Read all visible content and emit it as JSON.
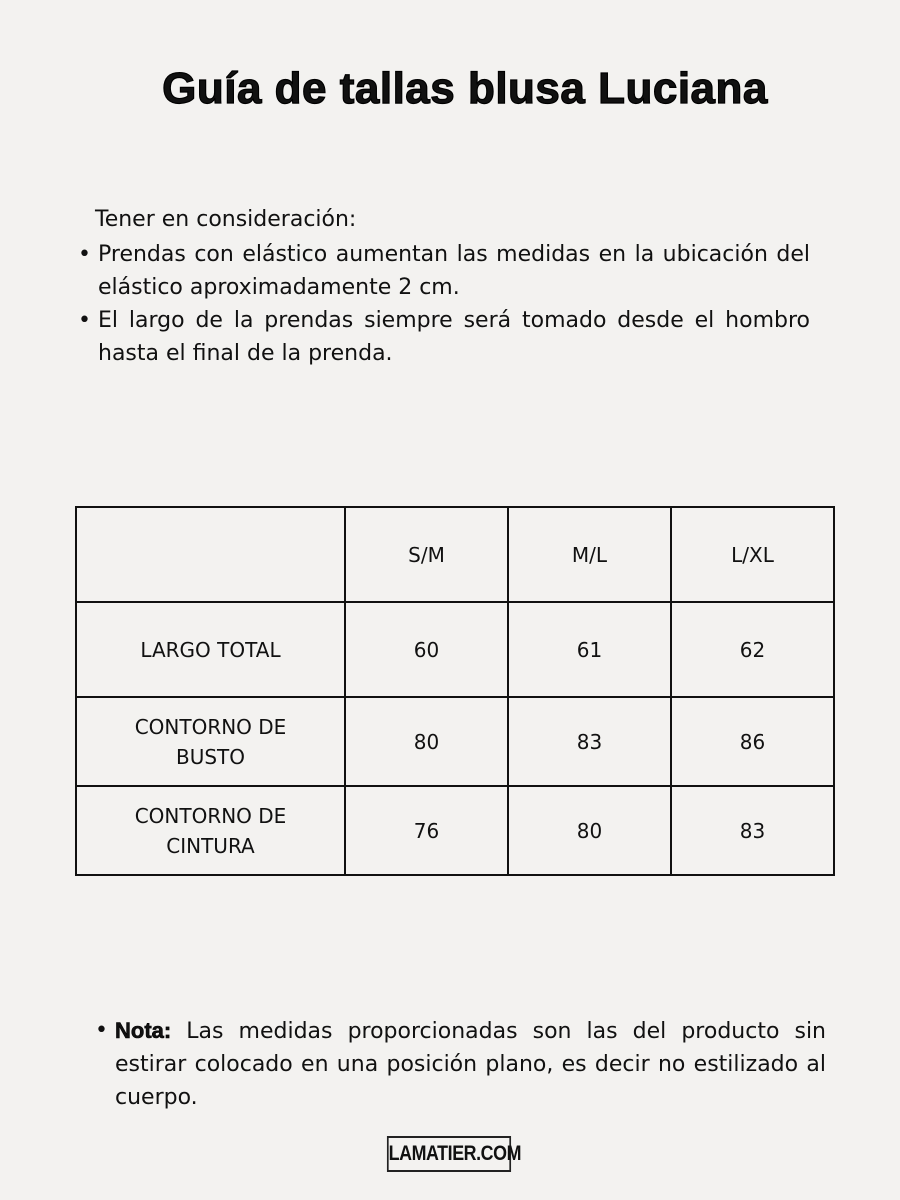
{
  "title": "Guía de tallas blusa Luciana",
  "intro": "Tener en consideración:",
  "bullets": [
    "Prendas con elástico aumentan las medidas en la ubicación del elástico aproximadamente 2 cm.",
    "El largo de la prendas siempre será tomado desde el hombro hasta el final de la prenda."
  ],
  "table": {
    "headers": [
      "",
      "S/M",
      "M/L",
      "L/XL"
    ],
    "rows": [
      {
        "label": "LARGO TOTAL",
        "values": [
          "60",
          "61",
          "62"
        ]
      },
      {
        "label": "CONTORNO DE BUSTO",
        "values": [
          "80",
          "83",
          "86"
        ]
      },
      {
        "label": "CONTORNO DE CINTURA",
        "values": [
          "76",
          "80",
          "83"
        ]
      }
    ]
  },
  "note": {
    "label": "Nota:",
    "text": " Las medidas proporcionadas son las del producto sin estirar colocado en una posición plano, es decir no estilizado al cuerpo."
  },
  "logo": "LAMATIER.COM"
}
